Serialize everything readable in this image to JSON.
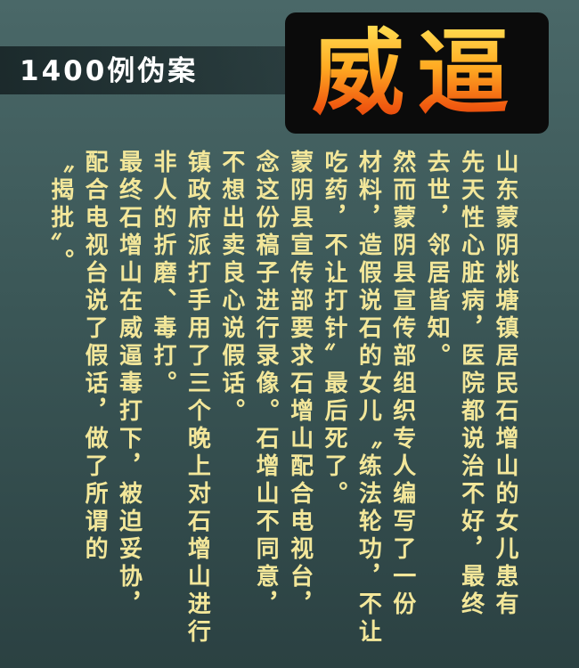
{
  "header": {
    "subtitle": "1400例伪案",
    "title": "威逼"
  },
  "columns": [
    "山东蒙阴桃塘镇居民石增山的女儿患有",
    "先天性心脏病，医院都说治不好，最终",
    "去世，邻居皆知。",
    "然而蒙阴县宣传部组织专人编写了一份",
    "材料，造假说石的女儿〝练法轮功，不让",
    "吃药，不让打针〞最后死了。",
    "蒙阴县宣传部要求石增山配合电视台，",
    "念这份稿子进行录像。石增山不同意，",
    "不想出卖良心说假话。",
    "镇政府派打手用了三个晚上对石增山进行",
    "非人的折磨、毒打。",
    "最终石增山在威逼毒打下，被迫妥协，",
    "配合电视台说了假话，做了所谓的",
    "〝揭批〞。"
  ]
}
